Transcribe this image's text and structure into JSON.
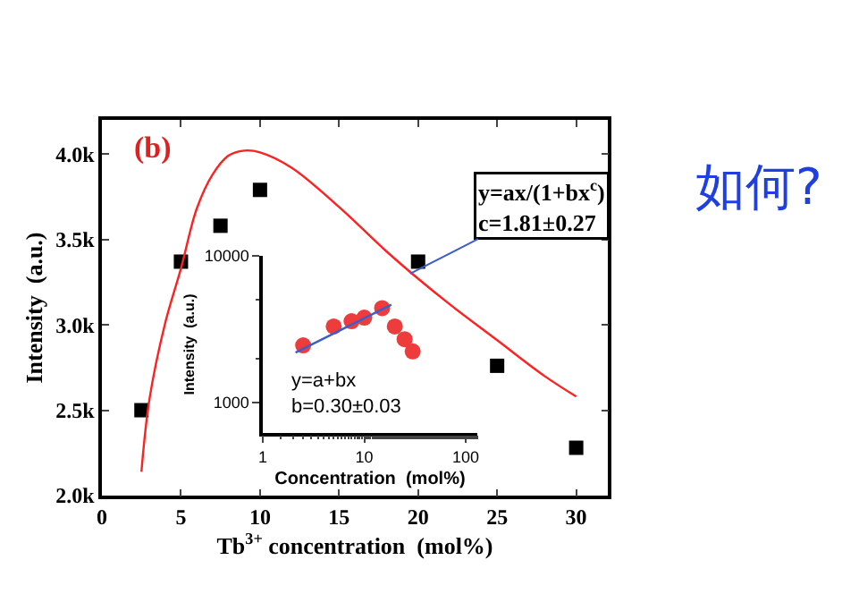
{
  "chart_data": [
    {
      "type": "scatter",
      "xlabel": "Tb$^{3+}$ concentration  (mol%)",
      "ylabel": "Intensity  (a.u.)",
      "xlim": [
        0,
        32
      ],
      "xticks": [
        0,
        5,
        10,
        15,
        20,
        25,
        30
      ],
      "ylim": [
        2000,
        4200
      ],
      "yticks": [
        {
          "value": 2000,
          "label": "2.0k"
        },
        {
          "value": 2500,
          "label": "2.5k"
        },
        {
          "value": 3000,
          "label": "3.0k"
        },
        {
          "value": 3500,
          "label": "3.5k"
        },
        {
          "value": 4000,
          "label": "4.0k"
        }
      ],
      "grid": false,
      "series": [
        {
          "type": "scatter",
          "marker": "square",
          "color": "#000000",
          "x": [
            2.5,
            5,
            7.5,
            10,
            20,
            25,
            30
          ],
          "values": [
            2500,
            3370,
            3580,
            3790,
            3370,
            2760,
            2280
          ]
        },
        {
          "type": "line",
          "marker": "none",
          "color": "#ff2020",
          "x": [
            2.5,
            3,
            4,
            5,
            6,
            7,
            8,
            9,
            10,
            12,
            15,
            18,
            20,
            22,
            25,
            28,
            30
          ],
          "values": [
            2140,
            2560,
            3010,
            3330,
            3680,
            3880,
            3990,
            4020,
            4010,
            3920,
            3690,
            3430,
            3270,
            3120,
            2910,
            2700,
            2580
          ]
        }
      ],
      "annotations": [
        "(b)",
        {
          "text": "y=ax/(1+bx$^{c}$)\nc=1.81±0.27",
          "x": 19.5,
          "y": 3300
        },
        "如何?"
      ]
    },
    {
      "type": "scatter",
      "xlabel": "Concentration  (mol%)",
      "ylabel": "Intensity  (a.u.)",
      "log": "xy",
      "xlim": [
        1,
        130
      ],
      "xticks": [
        1,
        10,
        100
      ],
      "ylim": [
        620,
        10000
      ],
      "yticks": [
        1000,
        10000
      ],
      "grid": false,
      "series": [
        {
          "type": "scatter",
          "marker": "circle",
          "color": "#ee3b3b",
          "x": [
            2.5,
            5,
            7.5,
            10,
            15,
            20,
            25,
            30
          ],
          "values": [
            2450,
            3300,
            3580,
            3790,
            4400,
            3300,
            2700,
            2230
          ]
        },
        {
          "type": "line",
          "marker": "none",
          "color": "#3a5fcd",
          "x": [
            2.1,
            18.5
          ],
          "values": [
            2190,
            4640
          ]
        }
      ],
      "annotations": [
        "y=a+bx\nb=0.30±0.03"
      ]
    }
  ]
}
